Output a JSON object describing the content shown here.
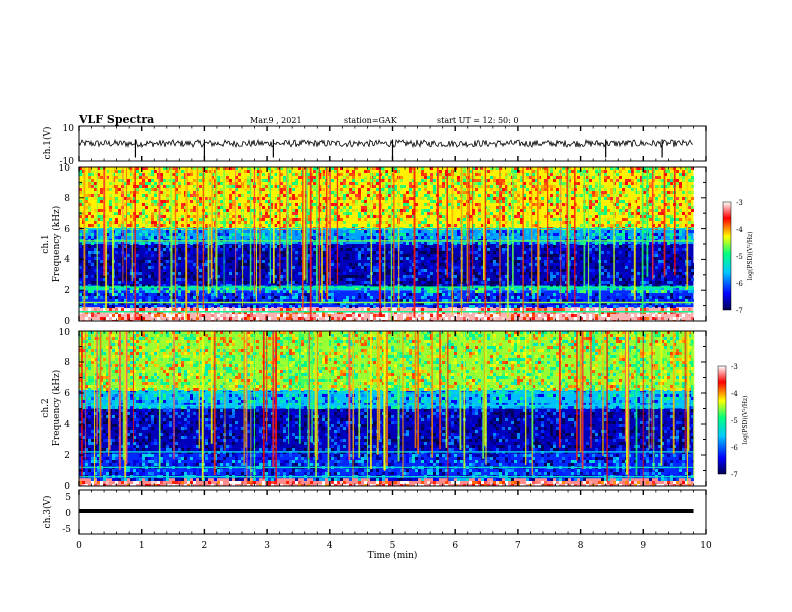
{
  "header": {
    "title": "VLF Spectra",
    "date": "Mar.9  , 2021",
    "station": "station=GAK",
    "start": "start  UT =   12: 50: 0"
  },
  "chart_data": [
    {
      "type": "line",
      "name": "ch1-waveform",
      "ylabel": "ch.1(V)",
      "ylim": [
        -10,
        10
      ],
      "yticks": [
        "10",
        "-10"
      ],
      "x": [
        0,
        10
      ],
      "approx_level": 0,
      "approx_amplitude": 2,
      "spikes_min": [
        0.9,
        2.0,
        3.1,
        5.0,
        8.4,
        9.3
      ]
    },
    {
      "type": "heatmap",
      "name": "ch1-spectrogram",
      "ylabel": "ch.1\nFrequency (kHz)",
      "ylabel_line1": "ch.1",
      "ylabel_line2": "Frequency (kHz)",
      "ylim": [
        0,
        10
      ],
      "yticks": [
        "0",
        "2",
        "4",
        "6",
        "8",
        "10"
      ],
      "xlim": [
        0,
        10
      ],
      "data_end_min": 9.8,
      "colorbar": {
        "label": "log(PSD)(V²/Hz)",
        "min": -7,
        "max": -3,
        "ticks": [
          "-3",
          "-4",
          "-5",
          "-6",
          "-7"
        ]
      },
      "bands_khz": [
        {
          "from": 0.0,
          "to": 0.9,
          "level": -3.2
        },
        {
          "from": 0.9,
          "to": 2.0,
          "level": -6.2
        },
        {
          "from": 2.0,
          "to": 2.3,
          "level": -5.4
        },
        {
          "from": 2.3,
          "to": 5.0,
          "level": -6.6
        },
        {
          "from": 5.0,
          "to": 6.0,
          "level": -5.8
        },
        {
          "from": 6.0,
          "to": 10.0,
          "level": -4.3
        }
      ]
    },
    {
      "type": "heatmap",
      "name": "ch2-spectrogram",
      "ylabel": "ch.2\nFrequency (kHz)",
      "ylabel_line1": "ch.2",
      "ylabel_line2": "Frequency (kHz)",
      "ylim": [
        0,
        10
      ],
      "yticks": [
        "0",
        "2",
        "4",
        "6",
        "8",
        "10"
      ],
      "xlim": [
        0,
        10
      ],
      "data_end_min": 9.8,
      "colorbar": {
        "label": "log(PSD)(V²/Hz)",
        "min": -7,
        "max": -3,
        "ticks": [
          "-3",
          "-4",
          "-5",
          "-6",
          "-7"
        ]
      },
      "bands_khz": [
        {
          "from": 0.0,
          "to": 0.5,
          "level": -3.3
        },
        {
          "from": 0.5,
          "to": 2.1,
          "level": -6.2
        },
        {
          "from": 2.1,
          "to": 5.0,
          "level": -6.6
        },
        {
          "from": 5.0,
          "to": 6.2,
          "level": -5.7
        },
        {
          "from": 6.2,
          "to": 10.0,
          "level": -4.6
        }
      ]
    },
    {
      "type": "line",
      "name": "ch3-waveform",
      "ylabel": "ch.3(V)",
      "ylim": [
        -5,
        5
      ],
      "yticks": [
        "5",
        "0",
        "-5"
      ],
      "approx_level": -1,
      "x": [
        0,
        10
      ]
    }
  ],
  "xaxis": {
    "label": "Time  (min)",
    "lim": [
      0,
      10
    ],
    "ticks": [
      "0",
      "1",
      "2",
      "3",
      "4",
      "5",
      "6",
      "7",
      "8",
      "9",
      "10"
    ]
  },
  "colors": {
    "cmap": [
      "#000055",
      "#0000ff",
      "#00c8ff",
      "#00ff80",
      "#ffff00",
      "#ff0000",
      "#ffffff"
    ],
    "trace": "#000000"
  }
}
